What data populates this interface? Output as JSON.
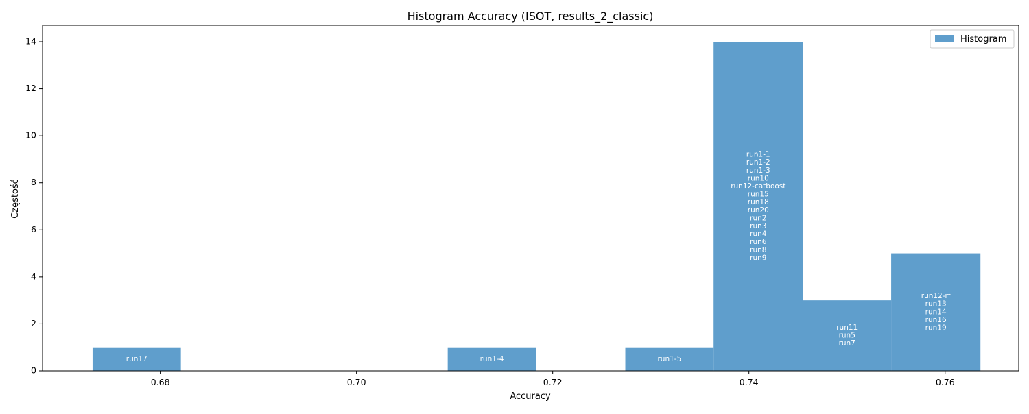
{
  "chart_data": {
    "type": "bar",
    "title": "Histogram Accuracy (ISOT, results_2_classic)",
    "xlabel": "Accuracy",
    "ylabel": "Częstość",
    "xlim": [
      0.668,
      0.7675
    ],
    "ylim": [
      0,
      14.7
    ],
    "grid": false,
    "legend_position": "top-right",
    "legend_label": "Histogram",
    "bar_color": "#5f9ecc",
    "label_color": "#ffffff",
    "x_ticks": [
      0.68,
      0.7,
      0.72,
      0.74,
      0.76
    ],
    "x_tick_labels": [
      "0.68",
      "0.70",
      "0.72",
      "0.74",
      "0.76"
    ],
    "y_ticks": [
      0,
      2,
      4,
      6,
      8,
      10,
      12,
      14
    ],
    "y_tick_labels": [
      "0",
      "2",
      "4",
      "6",
      "8",
      "10",
      "12",
      "14"
    ],
    "bins": [
      {
        "start": 0.6731,
        "end": 0.6821,
        "count": 1,
        "labels": [
          "run17"
        ]
      },
      {
        "start": 0.6821,
        "end": 0.6912,
        "count": 0,
        "labels": []
      },
      {
        "start": 0.6912,
        "end": 0.7002,
        "count": 0,
        "labels": []
      },
      {
        "start": 0.7002,
        "end": 0.7093,
        "count": 0,
        "labels": []
      },
      {
        "start": 0.7093,
        "end": 0.7183,
        "count": 1,
        "labels": [
          "run1-4"
        ]
      },
      {
        "start": 0.7183,
        "end": 0.7274,
        "count": 0,
        "labels": []
      },
      {
        "start": 0.7274,
        "end": 0.7364,
        "count": 1,
        "labels": [
          "run1-5"
        ]
      },
      {
        "start": 0.7364,
        "end": 0.7455,
        "count": 14,
        "labels": [
          "run1-1",
          "run1-2",
          "run1-3",
          "run10",
          "run12-catboost",
          "run15",
          "run18",
          "run20",
          "run2",
          "run3",
          "run4",
          "run6",
          "run8",
          "run9"
        ]
      },
      {
        "start": 0.7455,
        "end": 0.7545,
        "count": 3,
        "labels": [
          "run11",
          "run5",
          "run7"
        ]
      },
      {
        "start": 0.7545,
        "end": 0.7636,
        "count": 5,
        "labels": [
          "run12-rf",
          "run13",
          "run14",
          "run16",
          "run19"
        ]
      }
    ]
  }
}
